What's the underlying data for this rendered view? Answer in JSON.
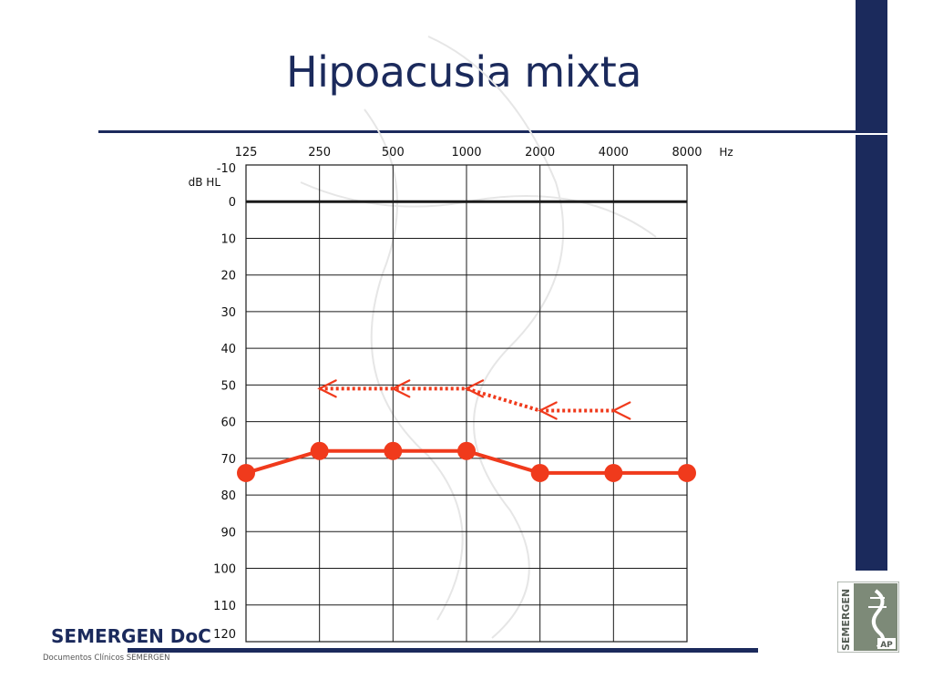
{
  "slide": {
    "title": "Hipoacusia mixta"
  },
  "footer": {
    "brand": "SEMERGEN DoC",
    "subtitle": "Documentos Clínicos SEMERGEN",
    "logo_text": "SEMERGEN",
    "logo_badge": "AP"
  },
  "colors": {
    "navy": "#1b2a5c",
    "series": "#f03a1c",
    "grid": "#1a1a1a"
  },
  "chart_data": {
    "type": "line",
    "x_unit": "Hz",
    "y_unit": "dB HL",
    "x_ticks": [
      "125",
      "250",
      "500",
      "1000",
      "2000",
      "4000",
      "8000"
    ],
    "y_ticks": [
      "-10",
      "0",
      "10",
      "20",
      "30",
      "40",
      "50",
      "60",
      "70",
      "80",
      "90",
      "100",
      "110",
      "120"
    ],
    "ylim": [
      -10,
      120
    ],
    "y_inverted": true,
    "grid": true,
    "reference_line_y": 0,
    "series": [
      {
        "style": "solid-dots",
        "x": [
          125,
          250,
          500,
          1000,
          2000,
          4000,
          8000
        ],
        "y": [
          74,
          68,
          68,
          68,
          74,
          74,
          74
        ]
      },
      {
        "style": "dotted-chevrons",
        "x": [
          250,
          500,
          1000,
          2000,
          4000
        ],
        "y": [
          51,
          51,
          51,
          57,
          57
        ]
      }
    ]
  }
}
